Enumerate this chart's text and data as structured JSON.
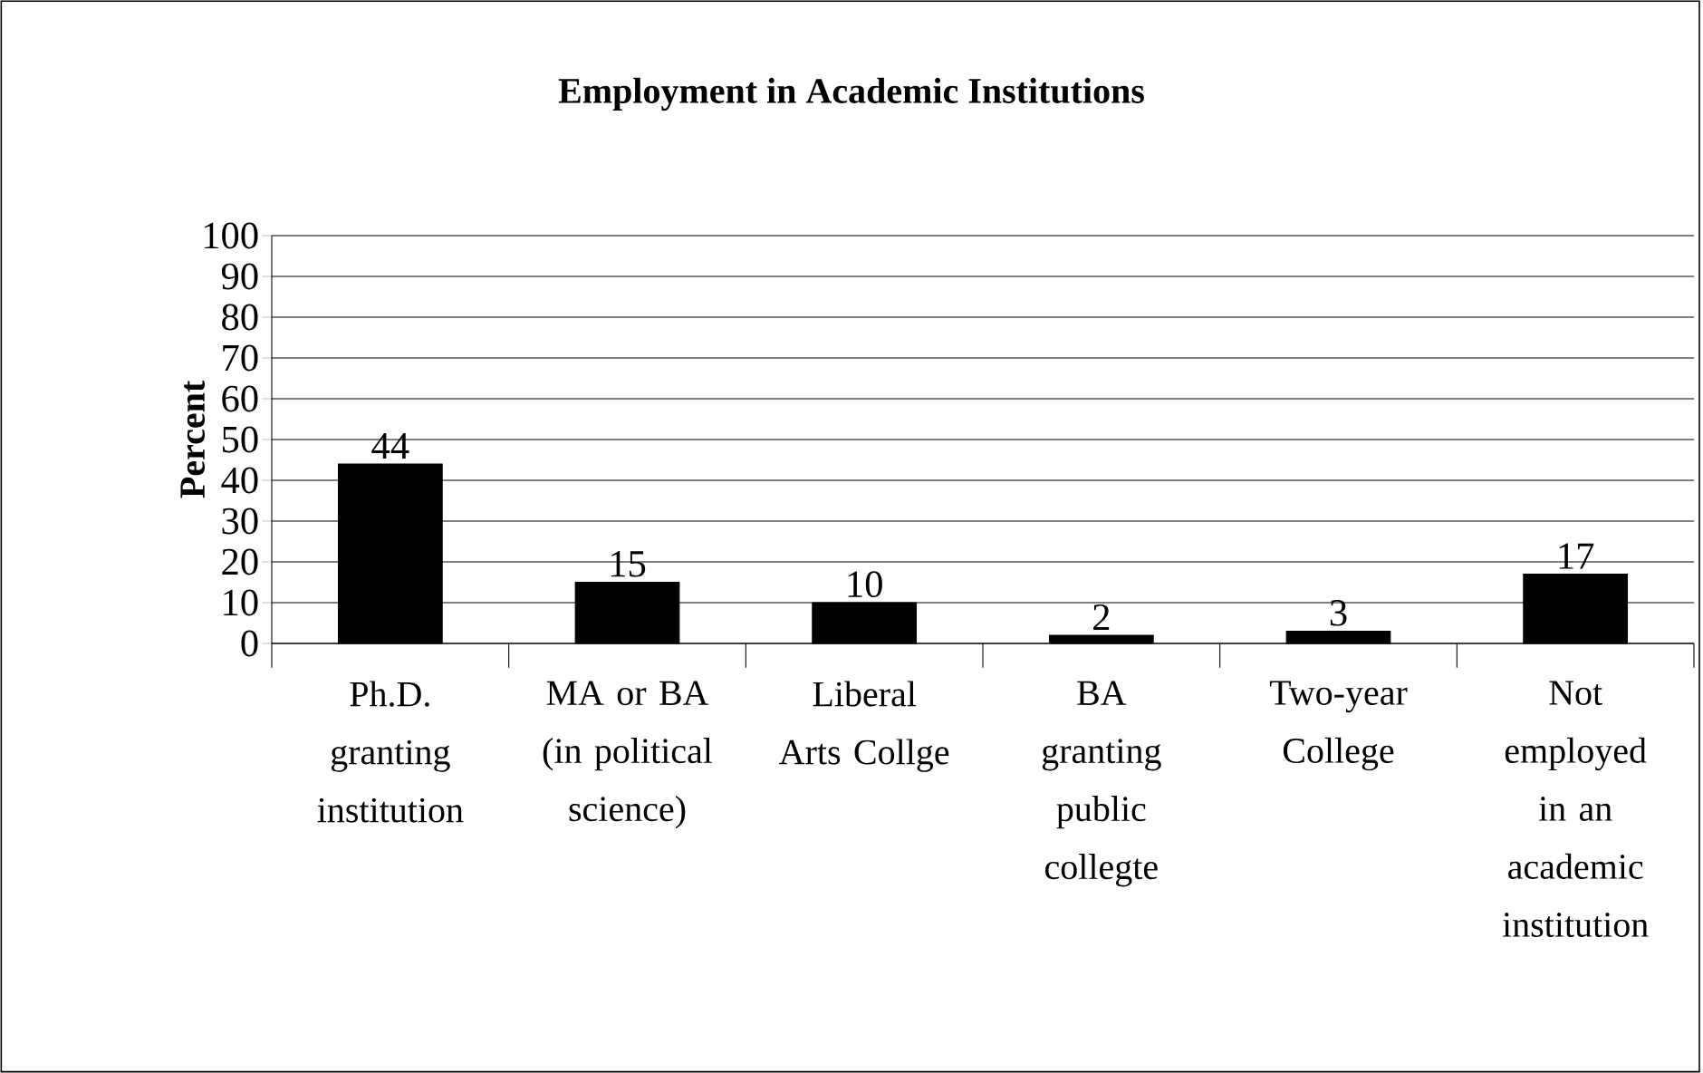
{
  "chart_data": {
    "type": "bar",
    "title": "Employment in Academic Institutions",
    "ylabel": "Percent",
    "categories": [
      "Ph.D. granting institution",
      "MA or BA (in political science)",
      "Liberal Arts Collge",
      "BA granting public collegte",
      "Two-year College",
      "Not employed in an academic institution"
    ],
    "values": [
      44,
      15,
      10,
      2,
      3,
      17
    ],
    "color": "#000000",
    "ylim": [
      0,
      100
    ],
    "yticks": [
      0,
      10,
      20,
      30,
      40,
      50,
      60,
      70,
      80,
      90,
      100
    ],
    "grid": "y",
    "data_labels": true
  }
}
